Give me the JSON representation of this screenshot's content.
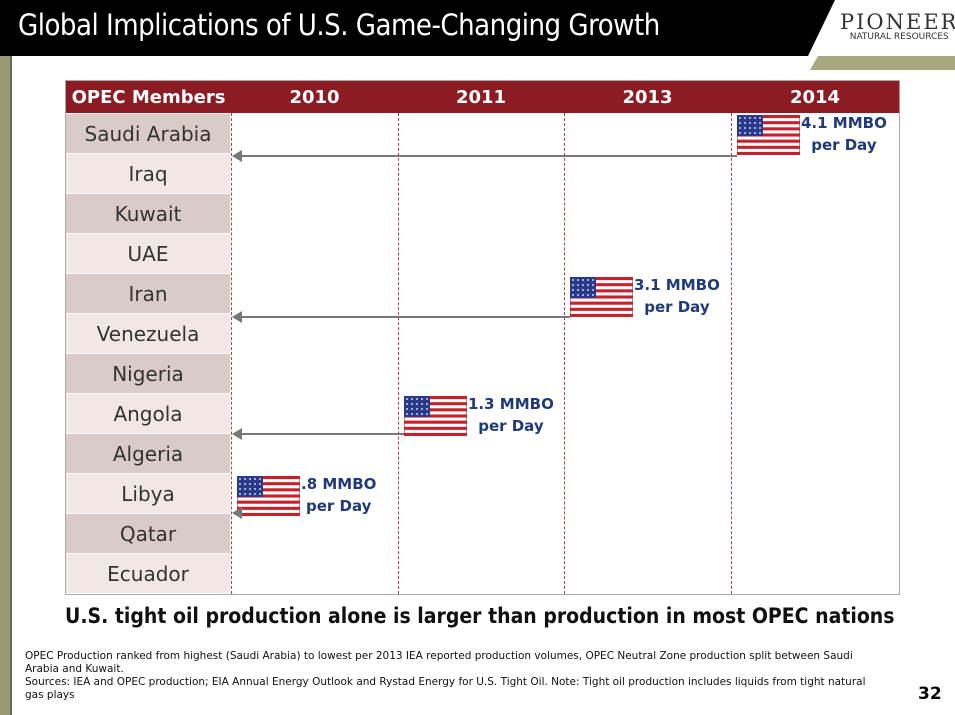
{
  "header": {
    "title": "Global Implications of U.S. Game-Changing Growth",
    "logo_line1": "PIONEER",
    "logo_line2": "NATURAL RESOURCES"
  },
  "table": {
    "columns": [
      "OPEC Members",
      "2010",
      "2011",
      "2013",
      "2014"
    ],
    "members": [
      "Saudi Arabia",
      "Iraq",
      "Kuwait",
      "UAE",
      "Iran",
      "Venezuela",
      "Nigeria",
      "Angola",
      "Algeria",
      "Libya",
      "Qatar",
      "Ecuador"
    ],
    "us_production": [
      {
        "year": "2014",
        "label": "4.1 MMBO per Day",
        "line1": "4.1 MMBO",
        "line2": "per Day",
        "equivalent_rank": "Saudi Arabia"
      },
      {
        "year": "2013",
        "label": "3.1 MMBO per Day",
        "line1": "3.1 MMBO",
        "line2": "per Day",
        "equivalent_rank": "Venezuela"
      },
      {
        "year": "2011",
        "label": "1.3 MMBO per Day",
        "line1": "1.3 MMBO",
        "line2": "per Day",
        "equivalent_rank": "Algeria"
      },
      {
        "year": "2010",
        "label": ".8 MMBO per Day",
        "line1": ".8 MMBO",
        "line2": "per Day",
        "equivalent_rank": "Qatar"
      }
    ]
  },
  "colors": {
    "header_red": "#8b1c24",
    "row_dark": "#d9cbc7",
    "row_light": "#f1e8e6",
    "label_blue": "#1f3a7a"
  },
  "tagline": "U.S. tight oil production alone is larger than production in most OPEC nations",
  "footnote1": "OPEC Production ranked from highest (Saudi Arabia) to lowest per 2013 IEA reported production volumes, OPEC Neutral Zone production split between Saudi Arabia and Kuwait.",
  "footnote2": "Sources: IEA and OPEC production; EIA Annual Energy Outlook and Rystad Energy for U.S. Tight Oil.  Note: Tight oil production includes liquids from tight natural gas plays",
  "page_number": "32"
}
